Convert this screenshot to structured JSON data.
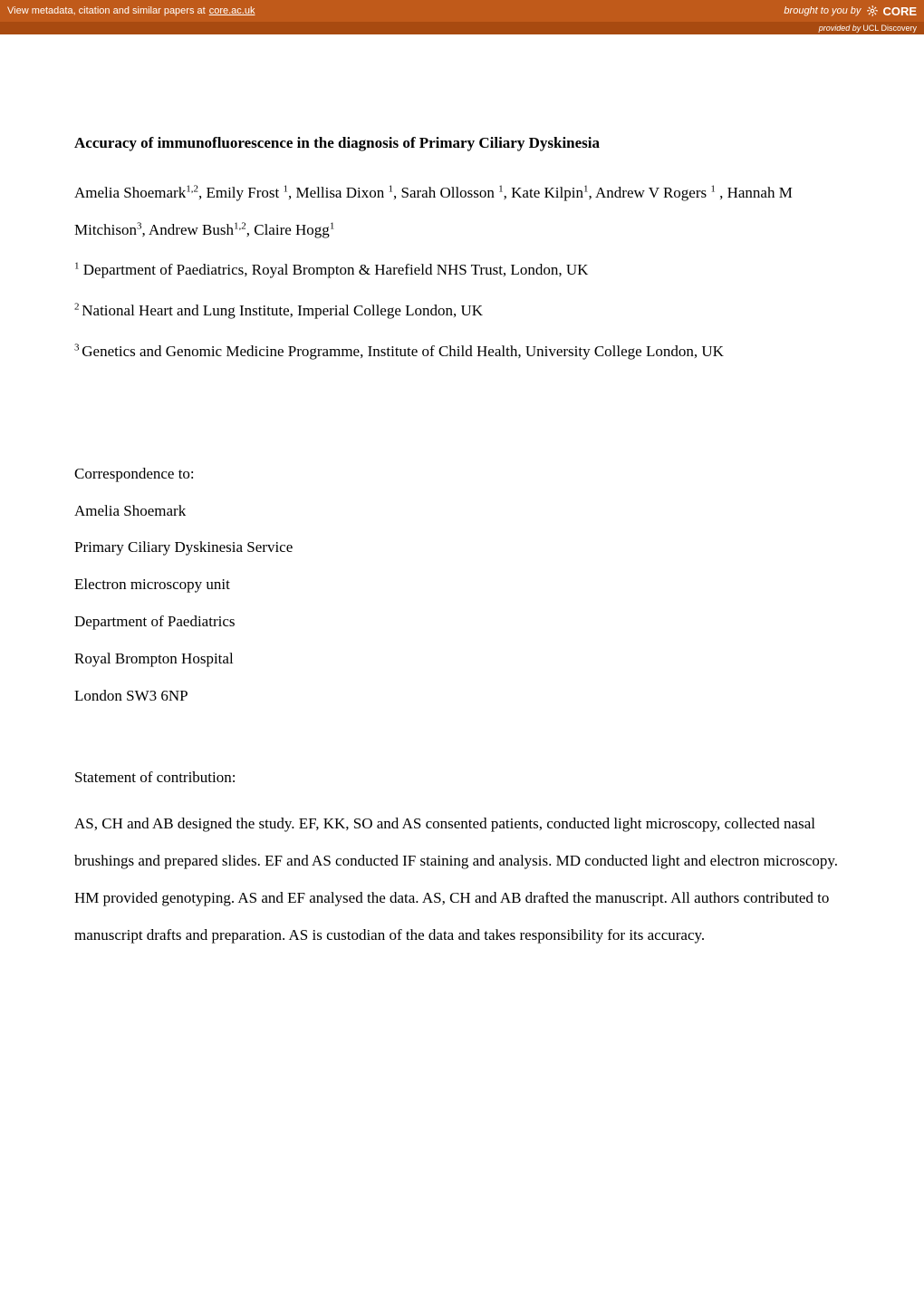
{
  "banner": {
    "metadata_text": "View metadata, citation and similar papers at ",
    "metadata_link": "core.ac.uk",
    "brought_by": "brought to you by",
    "core": "CORE",
    "provided_by": "provided by ",
    "provider": "UCL Discovery"
  },
  "paper": {
    "title": "Accuracy of immunofluorescence in the diagnosis of Primary Ciliary Dyskinesia",
    "authors_html": "Amelia Shoemark<sup>1,2</sup>, Emily Frost <sup>1</sup>, Mellisa Dixon <sup>1</sup>, Sarah Ollosson <sup>1</sup>, Kate Kilpin<sup>1</sup>, Andrew V Rogers <sup>1</sup> , Hannah M Mitchison<sup>3</sup>, Andrew Bush<sup>1,2</sup>, Claire Hogg<sup>1</sup>",
    "affiliations": [
      {
        "sup": "1",
        "text": " Department of Paediatrics, Royal Brompton & Harefield NHS Trust, London, UK"
      },
      {
        "sup": "2",
        "text": " National Heart and Lung Institute, Imperial College London, UK",
        "prefix_space": true
      },
      {
        "sup": "3",
        "text": " Genetics and Genomic Medicine Programme, Institute of Child Health, University College London, UK",
        "prefix_space": true
      }
    ],
    "correspondence_heading": "Correspondence to:",
    "correspondence_lines": [
      "Amelia Shoemark",
      "Primary Ciliary Dyskinesia Service",
      "Electron microscopy unit",
      "Department of Paediatrics",
      "Royal Brompton Hospital",
      "London SW3 6NP"
    ],
    "statement_heading": "Statement of contribution:",
    "statement_body": "AS, CH and AB designed the study. EF, KK, SO and AS consented patients, conducted light microscopy, collected nasal brushings and prepared slides. EF and AS conducted IF staining and analysis. MD conducted light and electron microscopy. HM provided genotyping. AS and EF analysed the data. AS, CH and AB drafted the manuscript. All authors contributed to manuscript drafts and preparation. AS is custodian of the data and takes responsibility for its accuracy."
  },
  "colors": {
    "banner_bg": "#c05a1a",
    "sub_banner_bg": "#a84a10",
    "text": "#000000",
    "banner_text": "#ffffff"
  },
  "typography": {
    "body_font": "Times New Roman",
    "body_size_pt": 13,
    "banner_font": "Arial",
    "banner_size_pt": 8
  }
}
